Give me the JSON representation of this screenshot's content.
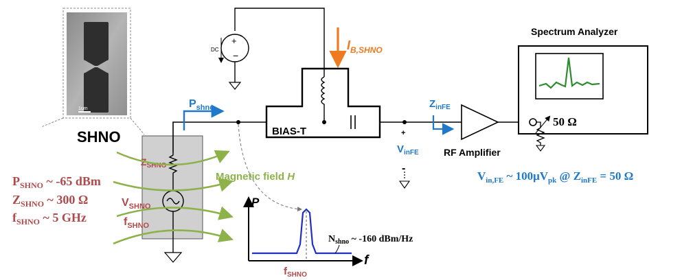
{
  "colors": {
    "wire": "#000000",
    "accent_blue": "#1f78c8",
    "accent_orange": "#f07a20",
    "accent_red": "#b04a4a",
    "accent_green": "#8db24a",
    "spectrum_line": "#2e8b2e",
    "psd_line": "#1f2fbf",
    "device_fill": "#d0d0d0"
  },
  "labels": {
    "micro_scale": "1um",
    "shno_title": "SHNO",
    "p_shno_small": "P",
    "p_shno_small_sub": "shno",
    "bias_t": "BIAS-T",
    "dc": "DC",
    "i_bias_main": "I",
    "i_bias_sub": "B,SHNO",
    "z_infe_main": "Z",
    "z_infe_sub": "inFE",
    "v_infe_main": "V",
    "v_infe_sub": "inFE",
    "plus_sign": "+",
    "minus_sign": "-",
    "rf_amp": "RF Amplifier",
    "spectrum_analyzer": "Spectrum Analyzer",
    "fifty_ohm": "50 Ω",
    "vin_fe_main": "V",
    "vin_fe_sub": "in,FE",
    "vin_fe_rest": " ~ 100μV",
    "vin_fe_pk": "pk",
    "vin_fe_at": " @ Z",
    "vin_fe_sub2": "inFE",
    "vin_fe_eq": " = 50 Ω",
    "z_shno_main": "Z",
    "z_shno_sub": "SHNO",
    "v_shno_main": "V",
    "v_shno_sub": "SHNO",
    "f_shno_main": "f",
    "f_shno_sub": "SHNO",
    "magnetic_field": "Magnetic field ",
    "magnetic_field_h": "H",
    "p_shno_big_main": "P",
    "p_shno_big_sub": "SHNO",
    "p_shno_big_val": " ~ -65 dBm",
    "z_shno_big_main": "Z",
    "z_shno_big_sub": "SHNO",
    "z_shno_big_val": " ~ 300 Ω",
    "f_shno_big_main": "f",
    "f_shno_big_sub": "SHNO",
    "f_shno_big_val": " ~  5 GHz",
    "psd_axis_p": "P",
    "psd_axis_f": "f",
    "psd_fshno_main": "f",
    "psd_fshno_sub": "SHNO",
    "noise_main": "N",
    "noise_sub": "shno",
    "noise_val": " ~ -160 dBm/Hz"
  }
}
